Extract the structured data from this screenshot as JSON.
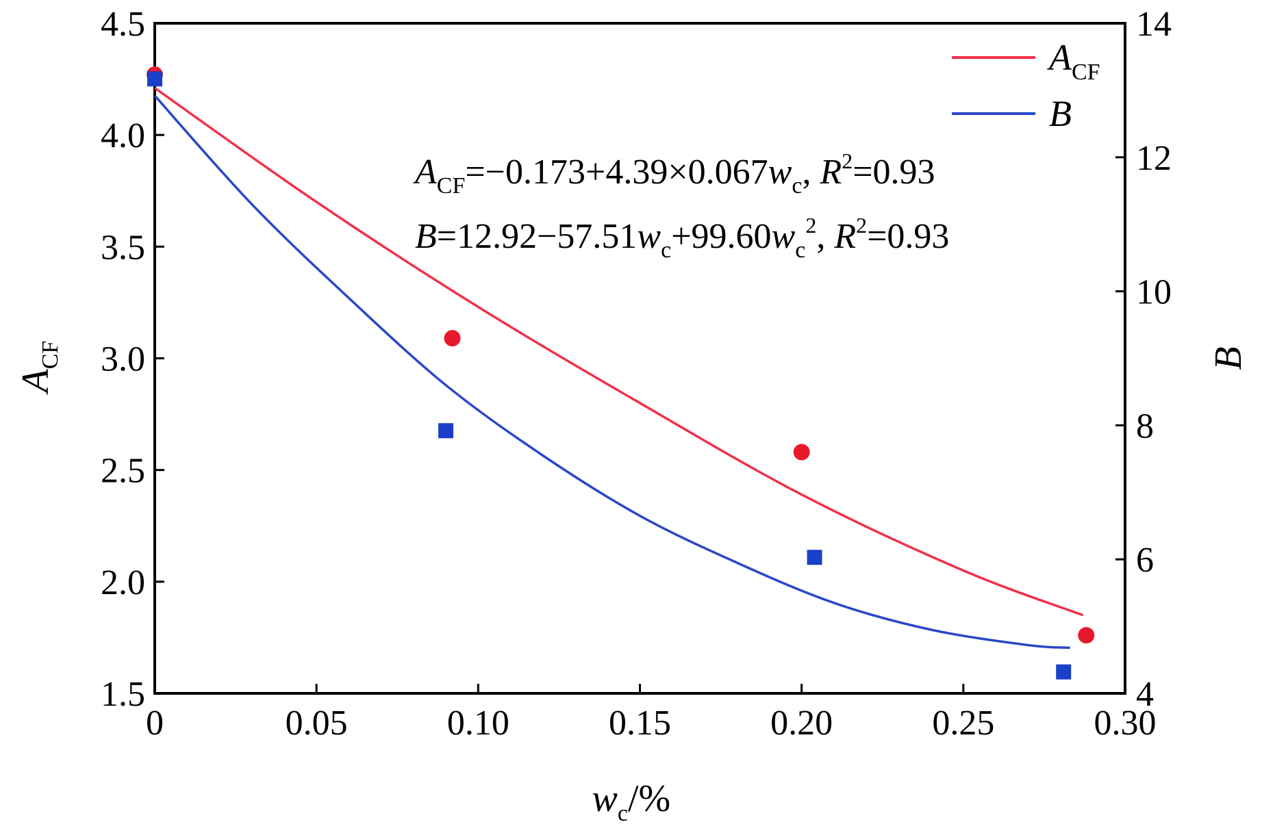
{
  "chart_data": {
    "type": "scatter",
    "title": "",
    "xlabel": {
      "main": "w",
      "sub": "c",
      "suffix": "/%"
    },
    "ylabel_left": {
      "main": "A",
      "sub": "CF"
    },
    "ylabel_right": {
      "main": "B"
    },
    "xlim": [
      0,
      0.3
    ],
    "ylim_left": [
      1.5,
      4.5
    ],
    "ylim_right": [
      4,
      14
    ],
    "x_ticks": [
      "0",
      "0.05",
      "0.10",
      "0.15",
      "0.20",
      "0.25",
      "0.30"
    ],
    "x_tick_values": [
      0,
      0.05,
      0.1,
      0.15,
      0.2,
      0.25,
      0.3
    ],
    "y_left_ticks": [
      "1.5",
      "2.0",
      "2.5",
      "3.0",
      "3.5",
      "4.0",
      "4.5"
    ],
    "y_left_tick_values": [
      1.5,
      2.0,
      2.5,
      3.0,
      3.5,
      4.0,
      4.5
    ],
    "y_right_ticks": [
      "4",
      "6",
      "8",
      "10",
      "12",
      "14"
    ],
    "y_right_tick_values": [
      4,
      6,
      8,
      10,
      12,
      14
    ],
    "grid": false,
    "legend_position": "top-right",
    "series": [
      {
        "name": "A_CF",
        "legend_main": "A",
        "legend_sub": "CF",
        "axis": "left",
        "color": "#e8192c",
        "line_color": "#f0314a",
        "marker": "circle",
        "points": {
          "x": [
            0,
            0.092,
            0.2,
            0.288
          ],
          "y": [
            4.27,
            3.09,
            2.58,
            1.76
          ]
        },
        "fit": {
          "x": [
            0,
            0.05,
            0.1,
            0.15,
            0.2,
            0.25,
            0.287
          ],
          "y": [
            4.21,
            3.7,
            3.23,
            2.8,
            2.39,
            2.05,
            1.85
          ]
        }
      },
      {
        "name": "B",
        "legend_main": "B",
        "legend_sub": "",
        "axis": "right",
        "color": "#1a3fc8",
        "line_color": "#2a48c8",
        "marker": "square",
        "points": {
          "x": [
            0,
            0.09,
            0.204,
            0.281
          ],
          "y": [
            13.17,
            7.92,
            6.03,
            4.32
          ]
        },
        "fit": {
          "x": [
            0,
            0.03,
            0.06,
            0.09,
            0.12,
            0.15,
            0.18,
            0.21,
            0.24,
            0.27,
            0.283
          ],
          "y": [
            12.92,
            11.3,
            9.9,
            8.6,
            7.55,
            6.65,
            5.95,
            5.35,
            4.95,
            4.72,
            4.68
          ]
        }
      }
    ],
    "annotations": [
      {
        "name": "acf-equation",
        "parts": [
          {
            "t": "A",
            "s": "it"
          },
          {
            "t": "CF",
            "s": "sub"
          },
          {
            "t": "=−0.173+4.39×0.067",
            "s": ""
          },
          {
            "t": "w",
            "s": "it"
          },
          {
            "t": "c",
            "s": "sub"
          },
          {
            "t": ", ",
            "s": ""
          },
          {
            "t": "R",
            "s": "it"
          },
          {
            "t": "2",
            "s": "sup"
          },
          {
            "t": "=0.93",
            "s": ""
          }
        ]
      },
      {
        "name": "b-equation",
        "parts": [
          {
            "t": "B",
            "s": "it"
          },
          {
            "t": "=12.92−57.51",
            "s": ""
          },
          {
            "t": "w",
            "s": "it"
          },
          {
            "t": "c",
            "s": "sub"
          },
          {
            "t": "+99.60",
            "s": ""
          },
          {
            "t": "w",
            "s": "it"
          },
          {
            "t": "c",
            "s": "sub"
          },
          {
            "t": "2",
            "s": "sup"
          },
          {
            "t": ", ",
            "s": ""
          },
          {
            "t": "R",
            "s": "it"
          },
          {
            "t": "2",
            "s": "sup"
          },
          {
            "t": "=0.93",
            "s": ""
          }
        ]
      }
    ]
  }
}
